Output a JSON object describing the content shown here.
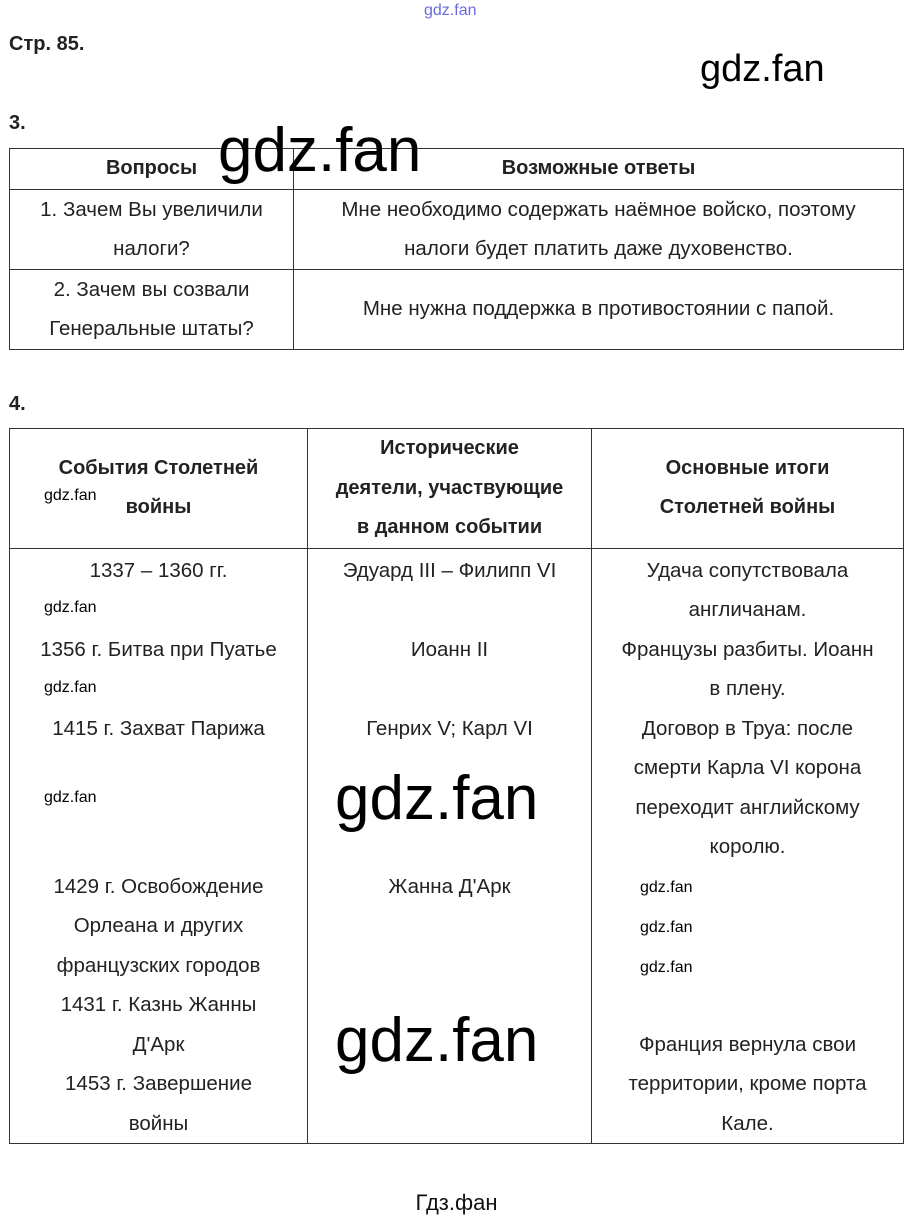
{
  "watermark_top": "gdz.fan",
  "watermark": "gdz.fan",
  "page_label": "Стр. 85.",
  "task3": {
    "number": "3.",
    "headers": [
      "Вопросы",
      "Возможные ответы"
    ],
    "rows": [
      {
        "q": [
          "1. Зачем Вы увеличили",
          "налоги?"
        ],
        "a": [
          "Мне необходимо содержать наёмное войско, поэтому",
          "налоги будет платить даже духовенство."
        ]
      },
      {
        "q": [
          "2. Зачем вы созвали",
          "Генеральные штаты?"
        ],
        "a": [
          "Мне нужна поддержка в противостоянии с папой."
        ]
      }
    ]
  },
  "task4": {
    "number": "4.",
    "headers": [
      [
        "События Столетней",
        "войны"
      ],
      [
        "Исторические",
        "деятели, участвующие",
        "в данном событии"
      ],
      [
        "Основные итоги",
        "Столетней войны"
      ]
    ],
    "columns": [
      [
        "1337 – 1360 гг.",
        "",
        "1356 г. Битва при Пуатье",
        "",
        "1415 г. Захват Парижа",
        "",
        "",
        "",
        "1429 г. Освобождение",
        "Орлеана и других",
        "французских городов",
        "1431 г. Казнь Жанны",
        "Д'Арк",
        "1453 г. Завершение",
        "войны"
      ],
      [
        "Эдуард III – Филипп VI",
        "",
        "Иоанн II",
        "",
        "Генрих V; Карл VI",
        "",
        "",
        "",
        "Жанна Д'Арк",
        "",
        "",
        "",
        "",
        "",
        ""
      ],
      [
        "Удача сопутствовала",
        "англичанам.",
        "Французы разбиты. Иоанн",
        "в плену.",
        "Договор в Труа: после",
        "смерти Карла VI корона",
        "переходит английскому",
        "королю.",
        "",
        "",
        "",
        "",
        "Франция вернула свои",
        "территории, кроме порта",
        "Кале."
      ]
    ]
  },
  "footer": "Гдз.фан",
  "colors": {
    "watermark_top": "#6a6ae0",
    "border": "#333333"
  }
}
